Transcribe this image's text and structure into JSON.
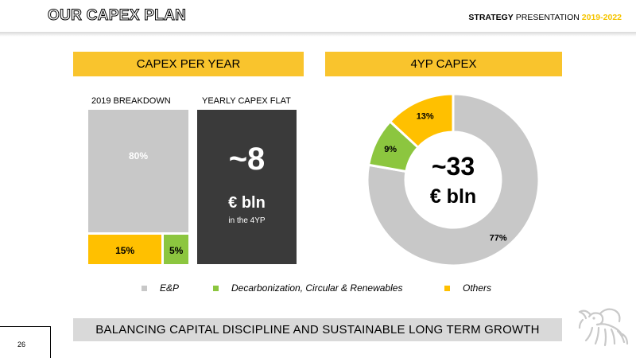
{
  "header": {
    "title": "OUR CAPEX PLAN",
    "right_bold": "STRATEGY",
    "right_normal": " PRESENTATION ",
    "right_year": "2019-2022"
  },
  "left_panel": {
    "title": "CAPEX PER YEAR",
    "breakdown_label": "2019 BREAKDOWN",
    "flat_label": "YEARLY CAPEX FLAT",
    "flat_value": "~8",
    "flat_unit": "€ bln",
    "flat_note": "in the 4YP"
  },
  "right_panel": {
    "title": "4YP CAPEX",
    "center_value": "~33",
    "center_unit": "€ bln"
  },
  "chart_data": [
    {
      "type": "bar",
      "title": "2019 BREAKDOWN",
      "categories": [
        "E&P",
        "Decarbonization, Circular & Renewables",
        "Others"
      ],
      "values": [
        80,
        5,
        15
      ],
      "labels": [
        "80%",
        "5%",
        "15%"
      ],
      "unit": "%"
    },
    {
      "type": "pie",
      "title": "4YP CAPEX",
      "categories": [
        "E&P",
        "Decarbonization, Circular & Renewables",
        "Others"
      ],
      "values": [
        77,
        9,
        13
      ],
      "labels": [
        "77%",
        "9%",
        "13%"
      ],
      "unit": "%"
    }
  ],
  "legend": [
    {
      "label": "E&P",
      "color": "#c8c8c8"
    },
    {
      "label": "Decarbonization, Circular & Renewables",
      "color": "#8cc63f"
    },
    {
      "label": "Others",
      "color": "#ffc000"
    }
  ],
  "colors": {
    "ep": "#c8c8c8",
    "decarb": "#8cc63f",
    "others": "#ffc000",
    "accent": "#f9c42d",
    "dark": "#3a3a3a"
  },
  "banner": "BALANCING CAPITAL DISCIPLINE AND SUSTAINABLE LONG TERM GROWTH",
  "page_number": "26",
  "logo_icon": "six-legged-dog-logo-icon"
}
